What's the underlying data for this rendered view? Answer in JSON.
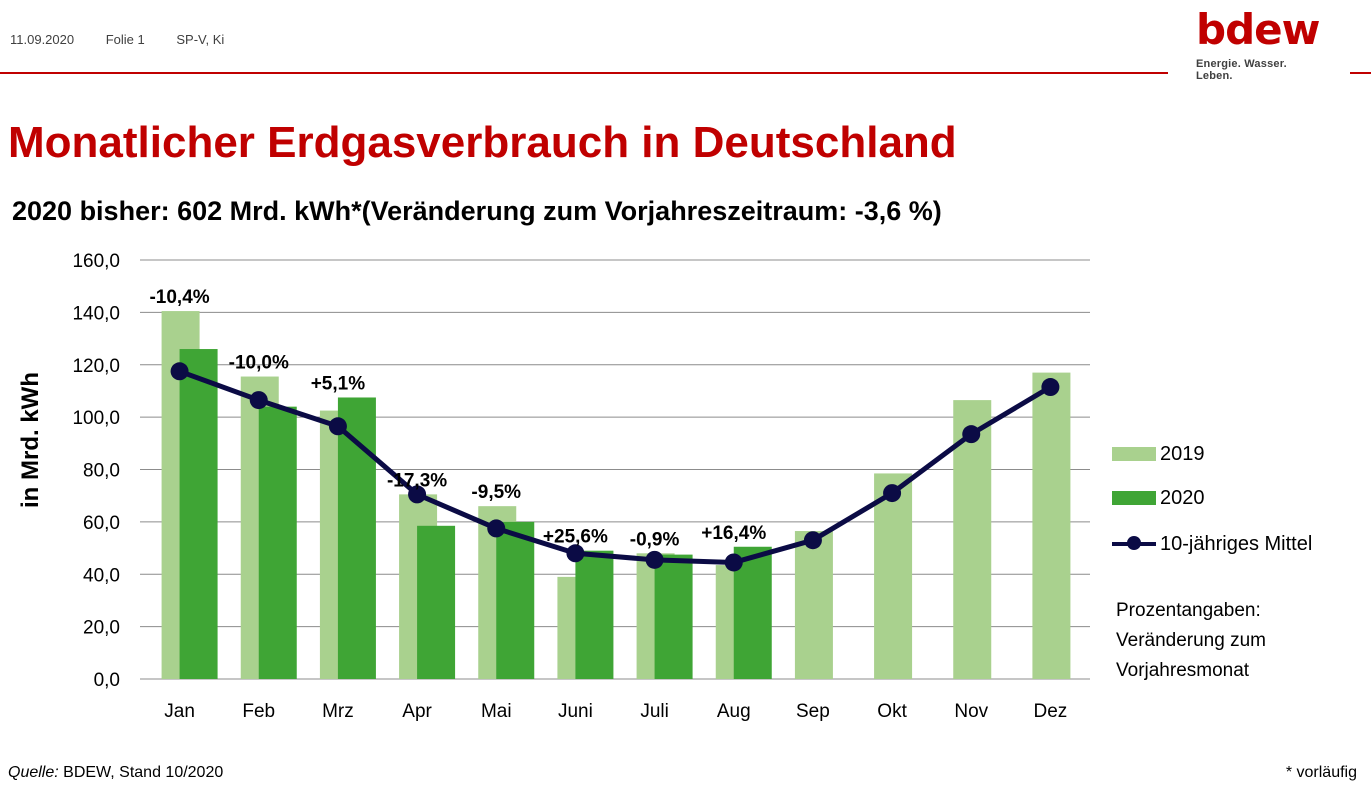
{
  "header": {
    "date": "11.09.2020",
    "slide": "Folie 1",
    "author": "SP-V, Ki"
  },
  "logo": {
    "word": "bdew",
    "tagline": "Energie. Wasser. Leben."
  },
  "page_title": "Monatlicher Erdgasverbrauch in Deutschland",
  "subtitle": "2020 bisher: 602 Mrd. kWh*(Veränderung zum Vorjahreszeitraum: -3,6 %)",
  "footer": {
    "source_label": "Quelle:",
    "source_text": " BDEW, Stand 10/2020",
    "note": "* vorläufig"
  },
  "footnote_lines": [
    "Prozentangaben:",
    "Veränderung zum",
    "Vorjahresmonat"
  ],
  "colors": {
    "brand_red": "#c00000",
    "series_2019": "#a9d18e",
    "series_2020": "#3fa535",
    "series_mean": "#0b0b45"
  },
  "chart_data": {
    "type": "bar",
    "ylabel": "in Mrd. kWh",
    "ylim": [
      0,
      160
    ],
    "yticks": [
      "0,0",
      "20,0",
      "40,0",
      "60,0",
      "80,0",
      "100,0",
      "120,0",
      "140,0",
      "160,0"
    ],
    "grid": true,
    "legend_position": "right",
    "categories": [
      "Jan",
      "Feb",
      "Mrz",
      "Apr",
      "Mai",
      "Juni",
      "Juli",
      "Aug",
      "Sep",
      "Okt",
      "Nov",
      "Dez"
    ],
    "series": [
      {
        "name": "2019",
        "type": "bar",
        "values": [
          140.5,
          115.5,
          102.5,
          70.5,
          66.0,
          39.0,
          48.0,
          43.5,
          56.5,
          78.5,
          106.5,
          117.0
        ]
      },
      {
        "name": "2020",
        "type": "bar",
        "values": [
          126.0,
          104.0,
          107.5,
          58.5,
          60.0,
          49.0,
          47.5,
          50.5,
          null,
          null,
          null,
          null
        ]
      },
      {
        "name": "10-jähriges Mittel",
        "type": "line",
        "values": [
          117.5,
          106.5,
          96.5,
          70.5,
          57.5,
          48.0,
          45.5,
          44.5,
          53.0,
          71.0,
          93.5,
          111.5
        ]
      }
    ],
    "annotations": [
      "-10,4%",
      "-10,0%",
      "+5,1%",
      "-17,3%",
      "-9,5%",
      "+25,6%",
      "-0,9%",
      "+16,4%"
    ]
  }
}
